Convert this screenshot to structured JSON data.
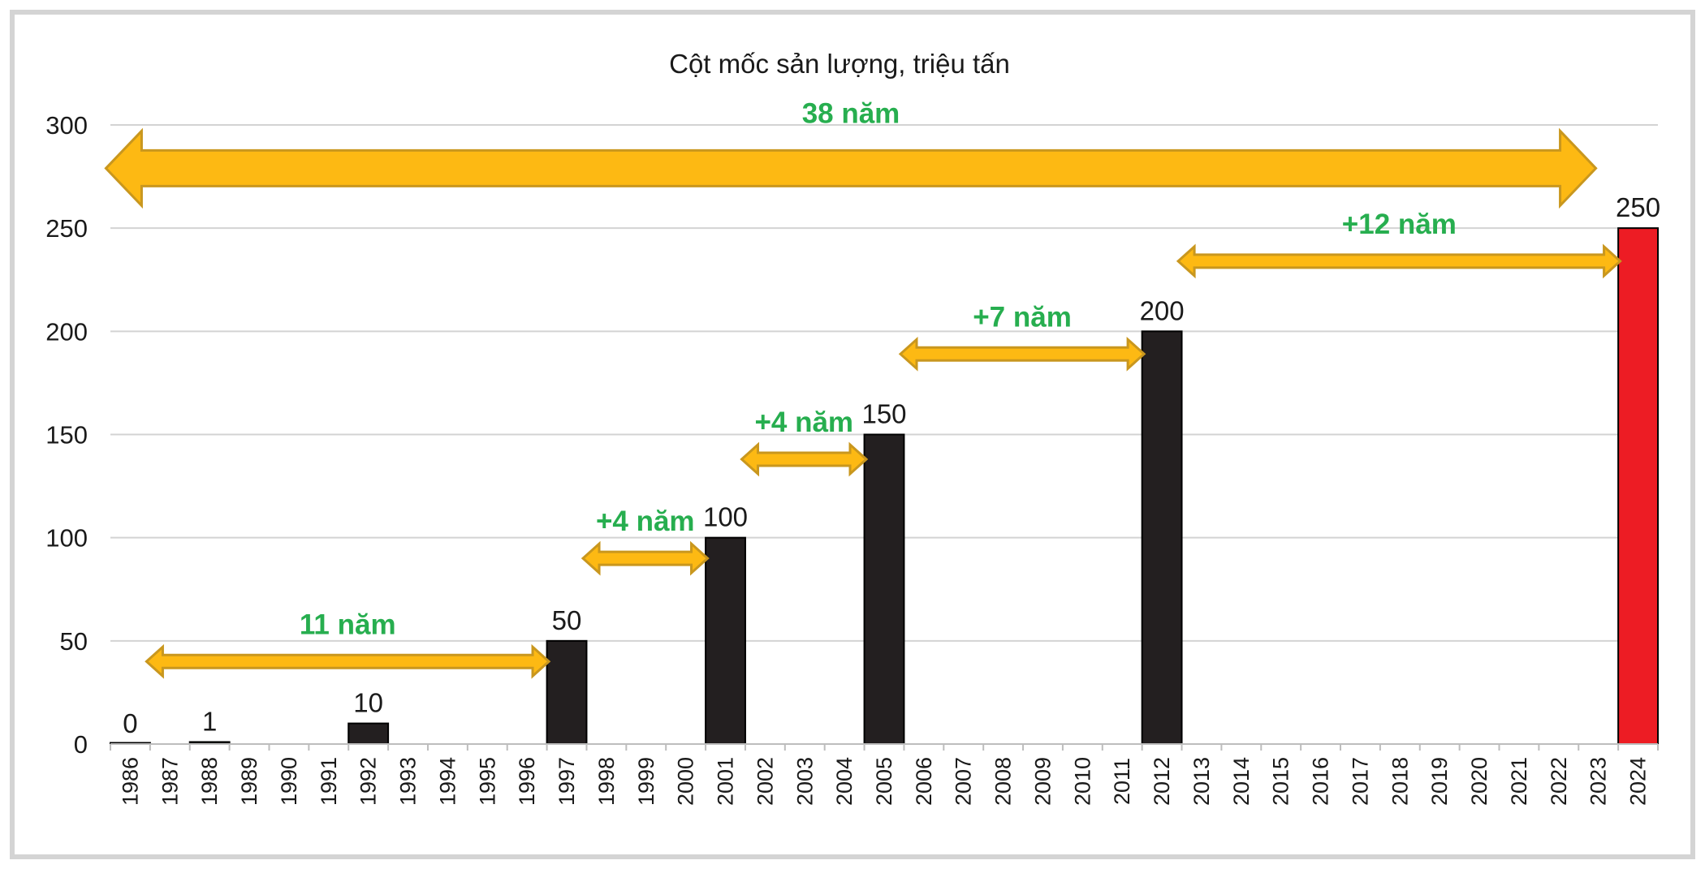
{
  "chart_data": {
    "type": "bar",
    "title": "Cột mốc sản lượng, triệu tấn",
    "xlabel": "",
    "ylabel": "",
    "ylim": [
      0,
      300
    ],
    "yticks": [
      0,
      50,
      100,
      150,
      200,
      250,
      300
    ],
    "grid": true,
    "categories": [
      "1986",
      "1987",
      "1988",
      "1989",
      "1990",
      "1991",
      "1992",
      "1993",
      "1994",
      "1995",
      "1996",
      "1997",
      "1998",
      "1999",
      "2000",
      "2001",
      "2002",
      "2003",
      "2004",
      "2005",
      "2006",
      "2007",
      "2008",
      "2009",
      "2010",
      "2011",
      "2012",
      "2013",
      "2014",
      "2015",
      "2016",
      "2017",
      "2018",
      "2019",
      "2020",
      "2021",
      "2022",
      "2023",
      "2024"
    ],
    "bars": [
      {
        "category": "1986",
        "value": 0,
        "label": "0",
        "color": "#231f20"
      },
      {
        "category": "1988",
        "value": 1,
        "label": "1",
        "color": "#231f20"
      },
      {
        "category": "1992",
        "value": 10,
        "label": "10",
        "color": "#231f20"
      },
      {
        "category": "1997",
        "value": 50,
        "label": "50",
        "color": "#231f20"
      },
      {
        "category": "2001",
        "value": 100,
        "label": "100",
        "color": "#231f20"
      },
      {
        "category": "2005",
        "value": 150,
        "label": "150",
        "color": "#231f20"
      },
      {
        "category": "2012",
        "value": 200,
        "label": "200",
        "color": "#231f20"
      },
      {
        "category": "2024",
        "value": 250,
        "label": "250",
        "color": "#ed1c24"
      }
    ],
    "annotations": [
      {
        "text": "38 năm",
        "from": "1986",
        "to": "2024",
        "y": 279,
        "size": "large"
      },
      {
        "text": "11 năm",
        "from": "1986",
        "to": "1997",
        "y": 40,
        "size": "small"
      },
      {
        "text": "+4 năm",
        "from": "1997",
        "to": "2001",
        "y": 90,
        "size": "small"
      },
      {
        "text": "+4 năm",
        "from": "2001",
        "to": "2005",
        "y": 138,
        "size": "small"
      },
      {
        "text": "+7 năm",
        "from": "2005",
        "to": "2012",
        "y": 189,
        "size": "small"
      },
      {
        "text": "+12 năm",
        "from": "2012",
        "to": "2024",
        "y": 234,
        "size": "small"
      }
    ],
    "colors": {
      "bar": "#231f20",
      "highlight_bar": "#ed1c24",
      "arrow_fill": "#fdb913",
      "arrow_stroke": "#c9971e",
      "annotation_text": "#27ae4f",
      "grid": "#d3d3d3"
    }
  }
}
